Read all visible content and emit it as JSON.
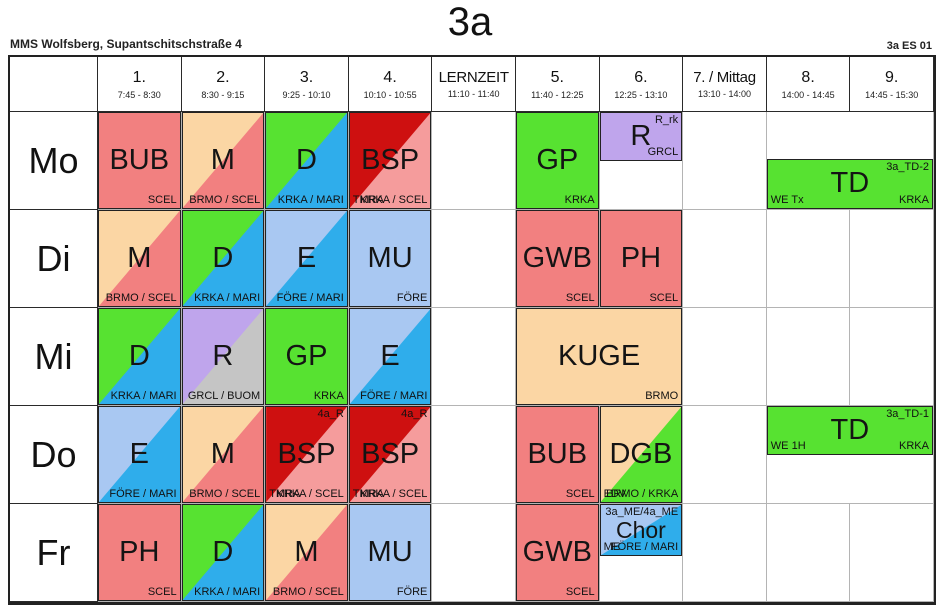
{
  "title": "3a",
  "header": {
    "school": "MMS Wolfsberg, Supantschitschstraße 4",
    "plan_code": "3a ES 01"
  },
  "columns": [
    {
      "label": "1.",
      "time": "7:45 - 8:30"
    },
    {
      "label": "2.",
      "time": "8:30 - 9:15"
    },
    {
      "label": "3.",
      "time": "9:25 - 10:10"
    },
    {
      "label": "4.",
      "time": "10:10 - 10:55"
    },
    {
      "label": "LERNZEIT",
      "time": "11:10 - 11:40"
    },
    {
      "label": "5.",
      "time": "11:40 - 12:25"
    },
    {
      "label": "6.",
      "time": "12:25 - 13:10"
    },
    {
      "label": "7. / Mittag",
      "time": "13:10 - 14:00"
    },
    {
      "label": "8.",
      "time": "14:00 - 14:45"
    },
    {
      "label": "9.",
      "time": "14:45 - 15:30"
    }
  ],
  "days": {
    "mo": {
      "label": "Mo",
      "p1": {
        "subject": "BUB",
        "teacher": "SCEL"
      },
      "p2": {
        "subject": "M",
        "teacher": "BRMO / SCEL"
      },
      "p3": {
        "subject": "D",
        "teacher": "KRKA / MARI"
      },
      "p4": {
        "subject": "BSP",
        "room": "TMRA",
        "teacher": "KRKA / SCEL"
      },
      "p5": {
        "subject": "GP",
        "teacher": "KRKA"
      },
      "p6": {
        "subject": "R",
        "tag": "R_rk",
        "teacher": "GRCL"
      },
      "p89": {
        "subject": "TD",
        "tag": "3a_TD-2",
        "room": "WE Tx",
        "teacher": "KRKA"
      }
    },
    "di": {
      "label": "Di",
      "p1": {
        "subject": "M",
        "teacher": "BRMO / SCEL"
      },
      "p2": {
        "subject": "D",
        "teacher": "KRKA / MARI"
      },
      "p3": {
        "subject": "E",
        "teacher": "FÖRE / MARI"
      },
      "p4": {
        "subject": "MU",
        "teacher": "FÖRE"
      },
      "p5": {
        "subject": "GWB",
        "teacher": "SCEL"
      },
      "p6": {
        "subject": "PH",
        "teacher": "SCEL"
      }
    },
    "mi": {
      "label": "Mi",
      "p1": {
        "subject": "D",
        "teacher": "KRKA / MARI"
      },
      "p2": {
        "subject": "R",
        "teacher": "GRCL / BUOM"
      },
      "p3": {
        "subject": "GP",
        "teacher": "KRKA"
      },
      "p4": {
        "subject": "E",
        "teacher": "FÖRE / MARI"
      },
      "p56": {
        "subject": "KUGE",
        "teacher": "BRMO"
      }
    },
    "do": {
      "label": "Do",
      "p1": {
        "subject": "E",
        "teacher": "FÖRE / MARI"
      },
      "p2": {
        "subject": "M",
        "teacher": "BRMO / SCEL"
      },
      "p3": {
        "subject": "BSP",
        "tag": "4a_R",
        "room": "TMRA",
        "teacher": "KRKA / SCEL"
      },
      "p4": {
        "subject": "BSP",
        "tag": "4a_R",
        "room": "TMRA",
        "teacher": "KRKA / SCEL"
      },
      "p5": {
        "subject": "BUB",
        "teacher": "SCEL"
      },
      "p6": {
        "subject": "DGB",
        "room": "EDV",
        "teacher": "BRMO / KRKA"
      },
      "p89": {
        "subject": "TD",
        "tag": "3a_TD-1",
        "room": "WE 1H",
        "teacher": "KRKA"
      }
    },
    "fr": {
      "label": "Fr",
      "p1": {
        "subject": "PH",
        "teacher": "SCEL"
      },
      "p2": {
        "subject": "D",
        "teacher": "KRKA / MARI"
      },
      "p3": {
        "subject": "M",
        "teacher": "BRMO / SCEL"
      },
      "p4": {
        "subject": "MU",
        "teacher": "FÖRE"
      },
      "p5": {
        "subject": "GWB",
        "teacher": "SCEL"
      },
      "p6": {
        "subject": "Chor",
        "tag": "3a_ME/4a_ME",
        "room": "ME",
        "teacher": "FÖRE / MARI"
      }
    }
  },
  "colors": {
    "red": "#F28080",
    "light_red": "#F59C9C",
    "dark_red": "#CE1010",
    "peach": "#FBD6A4",
    "green": "#57E231",
    "blue": "#2FADEB",
    "light_blue": "#A9C8F2",
    "purple": "#BFA5EC",
    "gray": "#C5C5C5"
  }
}
